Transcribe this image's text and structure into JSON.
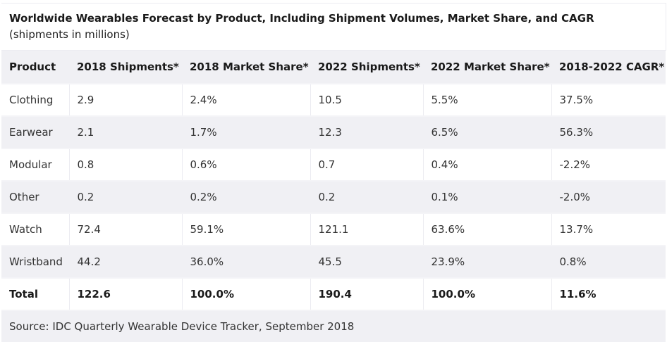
{
  "title": {
    "bold": "Worldwide Wearables Forecast by Product, Including Shipment Volumes, Market Share, and CAGR",
    "normal": " (shipments in millions)"
  },
  "table": {
    "headers": [
      "Product",
      "2018 Shipments*",
      "2018 Market Share*",
      "2022 Shipments*",
      "2022 Market Share*",
      "2018-2022 CAGR*"
    ],
    "rows": [
      [
        "Clothing",
        "2.9",
        "2.4%",
        "10.5",
        "5.5%",
        "37.5%"
      ],
      [
        "Earwear",
        "2.1",
        "1.7%",
        "12.3",
        "6.5%",
        "56.3%"
      ],
      [
        "Modular",
        "0.8",
        "0.6%",
        "0.7",
        "0.4%",
        "-2.2%"
      ],
      [
        "Other",
        "0.2",
        "0.2%",
        "0.2",
        "0.1%",
        "-2.0%"
      ],
      [
        "Watch",
        "72.4",
        "59.1%",
        "121.1",
        "63.6%",
        "13.7%"
      ],
      [
        "Wristband",
        "44.2",
        "36.0%",
        "45.5",
        "23.9%",
        "0.8%"
      ]
    ],
    "total": [
      "Total",
      "122.6",
      "100.0%",
      "190.4",
      "100.0%",
      "11.6%"
    ]
  },
  "source": "Source: IDC Quarterly Wearable Device Tracker, September 2018"
}
